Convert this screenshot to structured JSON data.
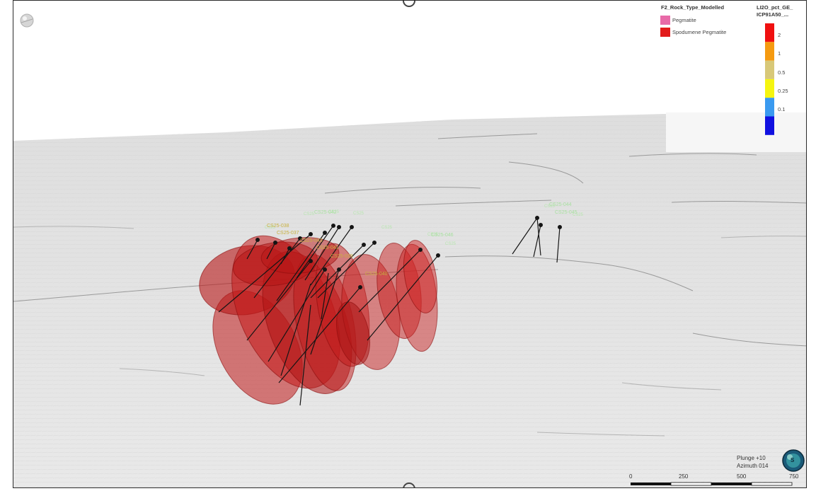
{
  "legend_rock": {
    "title": "F2_Rock_Type_Modelled",
    "items": [
      {
        "label": "Pegmatite",
        "color": "#e86aa8"
      },
      {
        "label": "Spodumene Pegmatite",
        "color": "#e21b1b"
      }
    ]
  },
  "legend_grade": {
    "title_line1": "LI2O_pct_GE_",
    "title_line2": "ICP91A50_...",
    "bins": [
      {
        "label": "2",
        "color": "#f01010"
      },
      {
        "label": "1",
        "color": "#f59a10"
      },
      {
        "label": "0.5",
        "color": "#d8c878"
      },
      {
        "label": "0.25",
        "color": "#f5f510"
      },
      {
        "label": "0.1",
        "color": "#3a9af0"
      },
      {
        "label": "",
        "color": "#1010e0"
      }
    ]
  },
  "view": {
    "plunge": "Plunge +10",
    "azimuth": "Azimuth 014",
    "compass_letter": "S"
  },
  "scale_bar": {
    "ticks": [
      "0",
      "250",
      "500",
      "750"
    ]
  },
  "drillhole_labels": [
    {
      "text": "CS25-038",
      "color": "#c8b040"
    },
    {
      "text": "CS25-037",
      "color": "#c8b040"
    },
    {
      "text": "CS25-041",
      "color": "#c8b040"
    },
    {
      "text": "CS25-039",
      "color": "#c8b040"
    },
    {
      "text": "CS25-042",
      "color": "#a8e0a0"
    },
    {
      "text": "CS25-044",
      "color": "#a8e0a0"
    },
    {
      "text": "CS25-045",
      "color": "#a8e0a0"
    },
    {
      "text": "CS25-046",
      "color": "#a8e0a0"
    },
    {
      "text": "CS25-040",
      "color": "#c8b040"
    },
    {
      "text": "CS25-043",
      "color": "#c8b040"
    }
  ]
}
